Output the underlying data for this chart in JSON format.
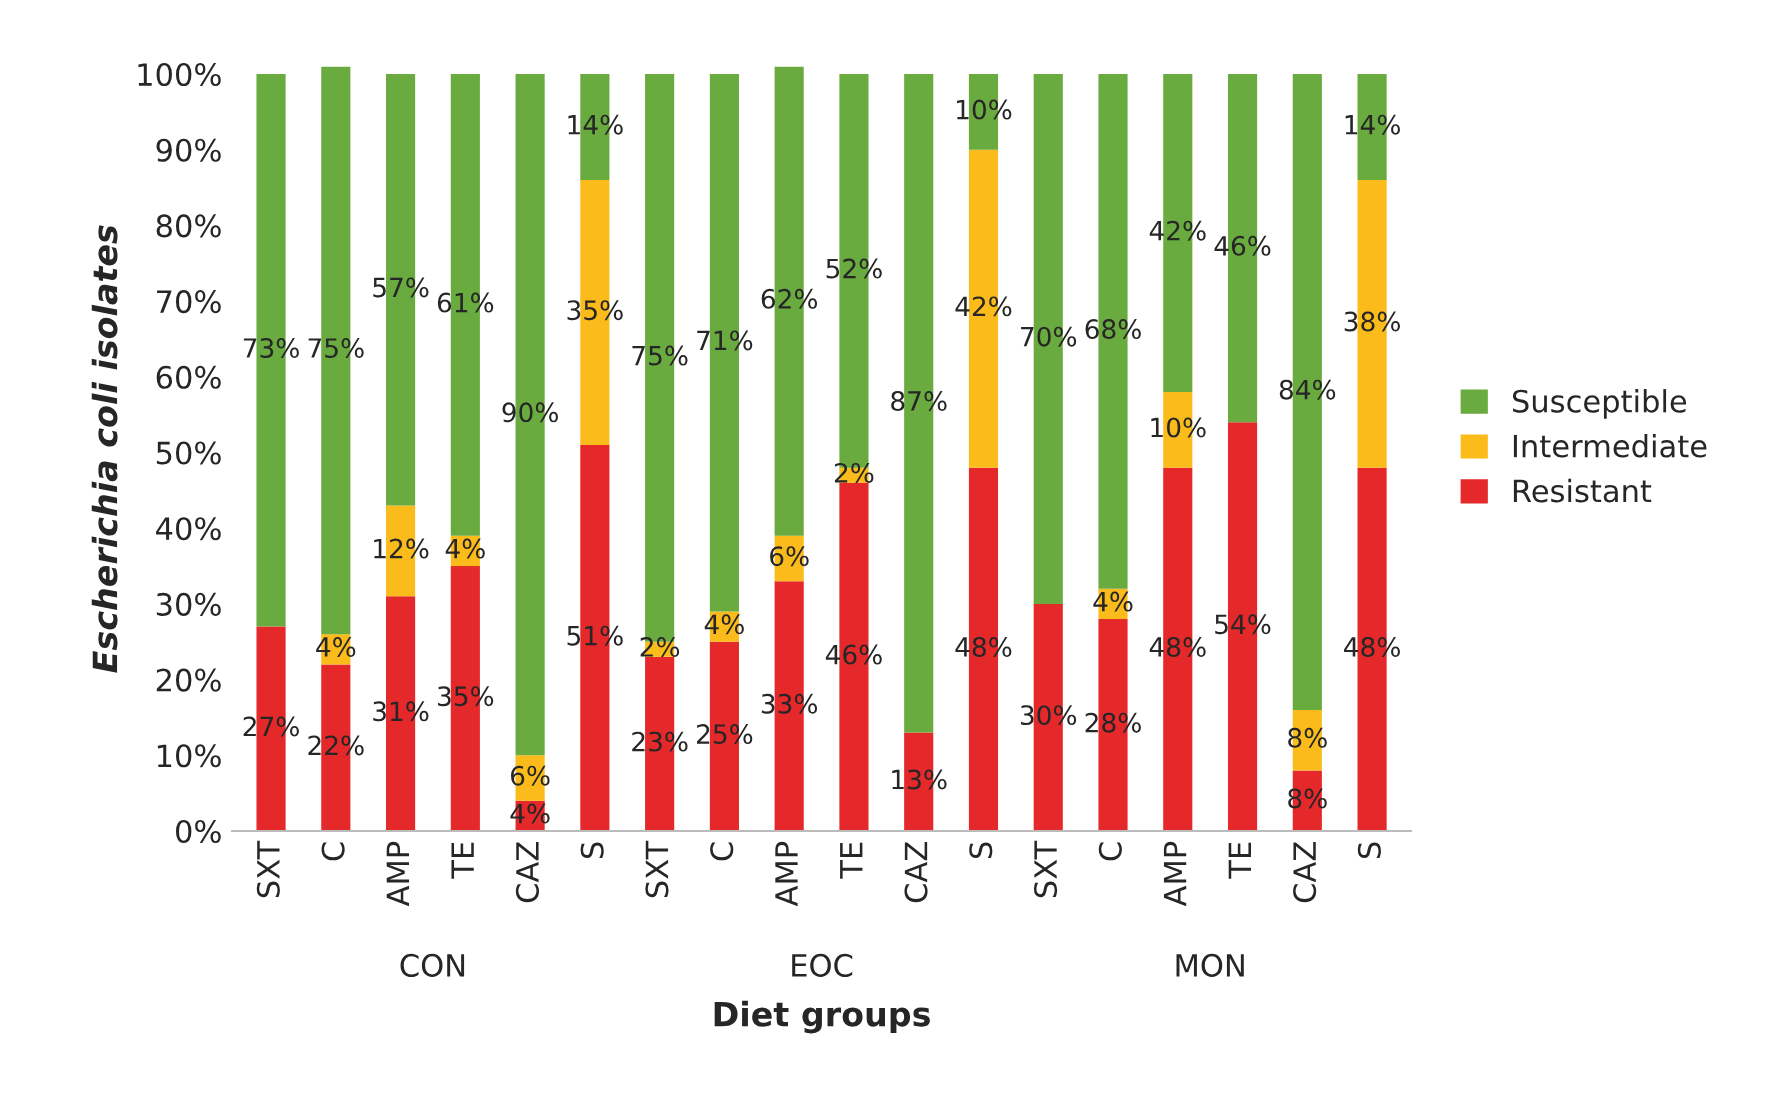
{
  "chart_data": {
    "type": "bar",
    "stacked": true,
    "xlabel": "Diet groups",
    "ylabel": "Escherichia coli isolates",
    "categories": [
      "SXT",
      "C",
      "AMP",
      "TE",
      "CAZ",
      "S",
      "SXT",
      "C",
      "AMP",
      "TE",
      "CAZ",
      "S",
      "SXT",
      "C",
      "AMP",
      "TE",
      "CAZ",
      "S"
    ],
    "series": [
      {
        "name": "Resistant",
        "color": "#e5282a",
        "values": [
          27,
          22,
          31,
          35,
          4,
          51,
          23,
          25,
          33,
          46,
          13,
          48,
          30,
          28,
          48,
          54,
          8,
          48
        ],
        "value_labels": [
          "27%",
          "22%",
          "31%",
          "35%",
          "4%",
          "51%",
          "23%",
          "25%",
          "33%",
          "46%",
          "13%",
          "48%",
          "30%",
          "28%",
          "48%",
          "54%",
          "8%",
          "48%"
        ]
      },
      {
        "name": "Intermediate",
        "color": "#fbbb1a",
        "values": [
          null,
          4,
          12,
          4,
          6,
          35,
          2,
          4,
          6,
          2,
          null,
          42,
          null,
          4,
          10,
          null,
          8,
          38
        ],
        "value_labels": [
          null,
          "4%",
          "12%",
          "4%",
          "6%",
          "35%",
          "2%",
          "4%",
          "6%",
          "2%",
          null,
          "42%",
          null,
          "4%",
          "10%",
          null,
          "8%",
          "38%"
        ]
      },
      {
        "name": "Susceptible",
        "color": "#6aab3f",
        "values": [
          73,
          75,
          57,
          61,
          90,
          14,
          75,
          71,
          62,
          52,
          87,
          10,
          70,
          68,
          42,
          46,
          84,
          14
        ],
        "value_labels": [
          "73%",
          "75%",
          "57%",
          "61%",
          "90%",
          "14%",
          "75%",
          "71%",
          "62%",
          "52%",
          "87%",
          "10%",
          "70%",
          "68%",
          "42%",
          "46%",
          "84%",
          "14%"
        ]
      }
    ],
    "annotations": [
      "CON",
      "EOC",
      "MON"
    ],
    "ylim": [
      0,
      101
    ],
    "yticks": [
      {
        "value": 0,
        "label": "0%"
      },
      {
        "value": 10,
        "label": "10%"
      },
      {
        "value": 20,
        "label": "20%"
      },
      {
        "value": 30,
        "label": "30%"
      },
      {
        "value": 40,
        "label": "40%"
      },
      {
        "value": 50,
        "label": "50%"
      },
      {
        "value": 60,
        "label": "60%"
      },
      {
        "value": 70,
        "label": "70%"
      },
      {
        "value": 80,
        "label": "80%"
      },
      {
        "value": 90,
        "label": "90%"
      },
      {
        "value": 100,
        "label": "100%"
      }
    ],
    "grid": false,
    "legend": "right"
  }
}
